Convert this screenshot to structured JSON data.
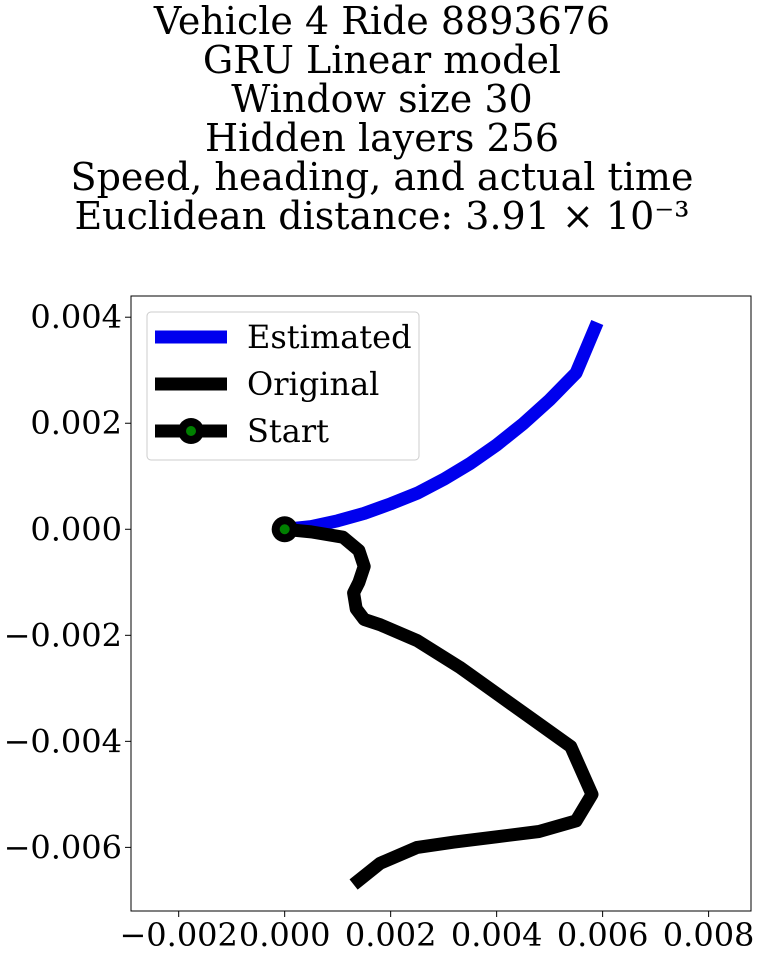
{
  "chart_data": {
    "type": "line",
    "title_lines": [
      "Vehicle 4 Ride 8893676",
      "GRU Linear model",
      "Window size 30",
      "Hidden layers 256",
      "Speed, heading, and actual time",
      "Euclidean distance: 3.91 × 10⁻³"
    ],
    "xlabel": "",
    "ylabel": "",
    "xlim": [
      -0.0029,
      0.0088
    ],
    "ylim": [
      -0.0072,
      0.0044
    ],
    "xticks": [
      -0.002,
      0.0,
      0.002,
      0.004,
      0.006,
      0.008
    ],
    "xtick_labels": [
      "−0.002",
      "0.000",
      "0.002",
      "0.004",
      "0.006",
      "0.008"
    ],
    "yticks": [
      0.004,
      0.002,
      0.0,
      -0.002,
      -0.004,
      -0.006
    ],
    "ytick_labels": [
      "0.004",
      "0.002",
      "0.000",
      "−0.002",
      "−0.004",
      "−0.006"
    ],
    "grid": false,
    "legend_position": "upper-left",
    "series": [
      {
        "name": "Estimated",
        "color": "#0000ee",
        "x": [
          0.0,
          0.0005,
          0.001,
          0.0015,
          0.002,
          0.0025,
          0.003,
          0.0035,
          0.004,
          0.0045,
          0.005,
          0.0055,
          0.0059
        ],
        "y": [
          0.0,
          5e-05,
          0.00016,
          0.0003,
          0.00048,
          0.00068,
          0.00094,
          0.00124,
          0.00159,
          0.00199,
          0.00244,
          0.00295,
          0.0039
        ]
      },
      {
        "name": "Original",
        "color": "#000000",
        "x": [
          0.0,
          0.0005,
          0.0011,
          0.0014,
          0.0015,
          0.0014,
          0.0013,
          0.00135,
          0.0015,
          0.0018,
          0.0025,
          0.0033,
          0.004,
          0.0047,
          0.0054,
          0.0058,
          0.0055,
          0.0048,
          0.004,
          0.0032,
          0.0025,
          0.0018,
          0.0013
        ],
        "y": [
          0.0,
          -5e-05,
          -0.00015,
          -0.0004,
          -0.0007,
          -0.001,
          -0.0012,
          -0.0015,
          -0.0017,
          -0.0018,
          -0.0021,
          -0.0026,
          -0.0031,
          -0.0036,
          -0.0041,
          -0.005,
          -0.0055,
          -0.0057,
          -0.0058,
          -0.0059,
          -0.006,
          -0.0063,
          -0.0067
        ]
      }
    ],
    "start": {
      "name": "Start",
      "x": 0.0,
      "y": 0.0,
      "edge_color": "#000000",
      "face_color": "#008000"
    }
  }
}
